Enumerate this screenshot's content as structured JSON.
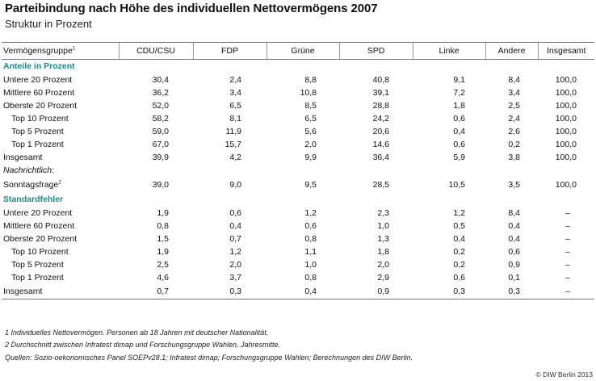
{
  "title": "Parteibindung nach Höhe des individuellen Nettovermögens 2007",
  "subtitle": "Struktur in Prozent",
  "header": {
    "row_label": "Vermögensgruppe",
    "row_label_sup": "1",
    "columns": [
      "CDU/CSU",
      "FDP",
      "Grüne",
      "SPD",
      "Linke",
      "Andere",
      "Insgesamt"
    ]
  },
  "sections": {
    "anteile": "Anteile in Prozent",
    "standardfehler": "Standardfehler",
    "nachrichtlich": "Nachrichtlich:"
  },
  "anteile_rows": [
    {
      "label": "Untere 20 Prozent",
      "values": [
        "30,4",
        "2,4",
        "8,8",
        "40,8",
        "9,1",
        "8,4",
        "100,0"
      ]
    },
    {
      "label": "Mittlere 60 Prozent",
      "values": [
        "36,2",
        "3,4",
        "10,8",
        "39,1",
        "7,2",
        "3,4",
        "100,0"
      ]
    },
    {
      "label": "Oberste 20 Prozent",
      "values": [
        "52,0",
        "6,5",
        "8,5",
        "28,8",
        "1,8",
        "2,5",
        "100,0"
      ]
    },
    {
      "label": "Top 10 Prozent",
      "values": [
        "58,2",
        "8,1",
        "6,5",
        "24,2",
        "0,6",
        "2,4",
        "100,0"
      ]
    },
    {
      "label": "Top 5 Prozent",
      "values": [
        "59,0",
        "11,9",
        "5,6",
        "20,6",
        "0,4",
        "2,6",
        "100,0"
      ]
    },
    {
      "label": "Top 1 Prozent",
      "values": [
        "67,0",
        "15,7",
        "2,0",
        "14,6",
        "0,6",
        "0,2",
        "100,0"
      ]
    },
    {
      "label": "Insgesamt",
      "values": [
        "39,9",
        "4,2",
        "9,9",
        "36,4",
        "5,9",
        "3,8",
        "100,0"
      ]
    }
  ],
  "sonntagsfrage": {
    "label": "Sonntagsfrage",
    "label_sup": "2",
    "values": [
      "39,0",
      "9,0",
      "9,5",
      "28,5",
      "10,5",
      "3,5",
      "100,0"
    ]
  },
  "standardfehler_rows": [
    {
      "label": "Untere 20 Prozent",
      "values": [
        "1,9",
        "0,6",
        "1,2",
        "2,3",
        "1,2",
        "8,4",
        "–"
      ]
    },
    {
      "label": "Mittlere 60 Prozent",
      "values": [
        "0,8",
        "0,4",
        "0,6",
        "1,0",
        "0,5",
        "0,4",
        "–"
      ]
    },
    {
      "label": "Oberste 20 Prozent",
      "values": [
        "1,5",
        "0,7",
        "0,8",
        "1,3",
        "0,4",
        "0,4",
        "–"
      ]
    },
    {
      "label": "Top 10 Prozent",
      "values": [
        "1,9",
        "1,2",
        "1,1",
        "1,8",
        "0,2",
        "0,6",
        "–"
      ]
    },
    {
      "label": "Top 5 Prozent",
      "values": [
        "2,5",
        "2,0",
        "1,0",
        "2,0",
        "0,2",
        "0,9",
        "–"
      ]
    },
    {
      "label": "Top 1 Prozent",
      "values": [
        "4,6",
        "3,7",
        "0,8",
        "2,9",
        "0,6",
        "0,1",
        "–"
      ]
    },
    {
      "label": "Insgesamt",
      "values": [
        "0,7",
        "0,3",
        "0,4",
        "0,9",
        "0,3",
        "0,3",
        "–"
      ]
    }
  ],
  "footnotes": [
    "1  Individuelles Nettovermögen. Personen ab 18 Jahren mit deutscher Nationalität.",
    "2 Durchschnitt zwischen Infratest dimap und Forschungsgruppe Wahlen, Jahresmitte.",
    "Quellen: Sozio-oekonomisches Panel SOEPv28.1; Infratest dimap; Forschungsgruppe Wahlen; Berechnungen des DIW Berlin."
  ],
  "credit": "© DIW Berlin 2013"
}
